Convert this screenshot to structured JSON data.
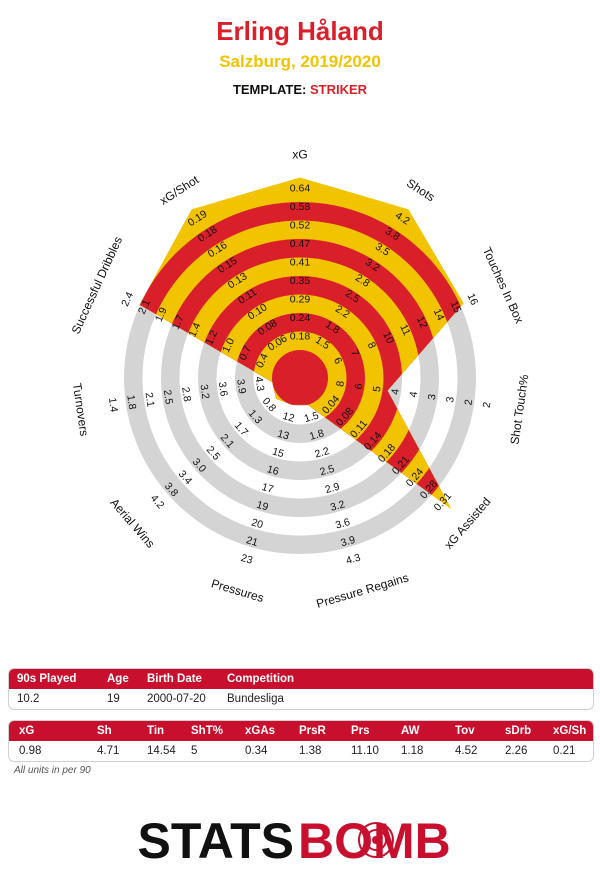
{
  "header": {
    "player": "Erling Håland",
    "subtitle": "Salzburg, 2019/2020",
    "template_label": "TEMPLATE:",
    "template_value": "STRIKER"
  },
  "colors": {
    "red": "#d91f2a",
    "yellow": "#f2c400",
    "grey": "#d4d4d4"
  },
  "chart_data": {
    "type": "radar",
    "title": "Erling Håland",
    "subtitle": "Salzburg, 2019/2020",
    "axes": [
      {
        "name": "xG",
        "ticks": [
          "0.18",
          "0.24",
          "0.29",
          "0.35",
          "0.41",
          "0.47",
          "0.52",
          "0.58",
          "0.64"
        ],
        "value": 0.98,
        "fraction": 1.0
      },
      {
        "name": "Shots",
        "ticks": [
          "1.5",
          "1.8",
          "2.2",
          "2.5",
          "2.8",
          "3.2",
          "3.5",
          "3.8",
          "4.2"
        ],
        "value": 4.71,
        "fraction": 1.0
      },
      {
        "name": "Touches In Box",
        "ticks": [
          "6",
          "7",
          "8",
          "10",
          "11",
          "12",
          "14",
          "15",
          "16"
        ],
        "value": 14.54,
        "fraction": 0.88
      },
      {
        "name": "Shot Touch%",
        "ticks": [
          "8",
          "6",
          "5",
          "4",
          "4",
          "3",
          "3",
          "2",
          "2"
        ],
        "value": 5,
        "fraction": 0.35
      },
      {
        "name": "xG Assisted",
        "ticks": [
          "0.04",
          "0.08",
          "0.11",
          "0.14",
          "0.18",
          "0.21",
          "0.24",
          "0.28",
          "0.31"
        ],
        "value": 0.34,
        "fraction": 1.0
      },
      {
        "name": "Pressure Regains",
        "ticks": [
          "1.5",
          "1.8",
          "2.2",
          "2.5",
          "2.9",
          "3.2",
          "3.6",
          "3.9",
          "4.3"
        ],
        "value": 1.38,
        "fraction": 0.0
      },
      {
        "name": "Pressures",
        "ticks": [
          "12",
          "13",
          "15",
          "16",
          "17",
          "19",
          "20",
          "21",
          "23"
        ],
        "value": 11.1,
        "fraction": 0.0
      },
      {
        "name": "Aerial Wins",
        "ticks": [
          "0.8",
          "1.3",
          "1.7",
          "2.1",
          "2.5",
          "3.0",
          "3.4",
          "3.8",
          "4.2"
        ],
        "value": 1.18,
        "fraction": 0.02
      },
      {
        "name": "Turnovers",
        "ticks": [
          "4.3",
          "3.9",
          "3.6",
          "3.2",
          "2.8",
          "2.5",
          "2.1",
          "1.8",
          "1.4"
        ],
        "value": 4.52,
        "fraction": 0.0
      },
      {
        "name": "Successful Dribbles",
        "ticks": [
          "0.4",
          "0.7",
          "1.0",
          "1.2",
          "1.4",
          "1.7",
          "1.9",
          "2.1",
          "2.4"
        ],
        "value": 2.26,
        "fraction": 0.86
      },
      {
        "name": "xG/Shot",
        "ticks": [
          "0.06",
          "0.08",
          "0.10",
          "0.11",
          "0.13",
          "0.15",
          "0.16",
          "0.18",
          "0.19"
        ],
        "value": 0.21,
        "fraction": 1.0
      }
    ],
    "outer_tick_xg_shot": "0.21",
    "outer_tick_dribbles_extra": "2.4"
  },
  "info_table": {
    "headers": [
      "90s Played",
      "Age",
      "Birth Date",
      "Competition"
    ],
    "values": [
      "10.2",
      "19",
      "2000-07-20",
      "Bundesliga"
    ]
  },
  "stats_table": {
    "headers": [
      "xG",
      "Sh",
      "Tin",
      "ShT%",
      "xGAs",
      "PrsR",
      "Prs",
      "AW",
      "Tov",
      "sDrb",
      "xG/Sh"
    ],
    "values": [
      "0.98",
      "4.71",
      "14.54",
      "5",
      "0.34",
      "1.38",
      "11.10",
      "1.18",
      "4.52",
      "2.26",
      "0.21"
    ]
  },
  "footnote": "All units in per 90",
  "logo": {
    "left": "STATS",
    "right": "BOMB"
  }
}
